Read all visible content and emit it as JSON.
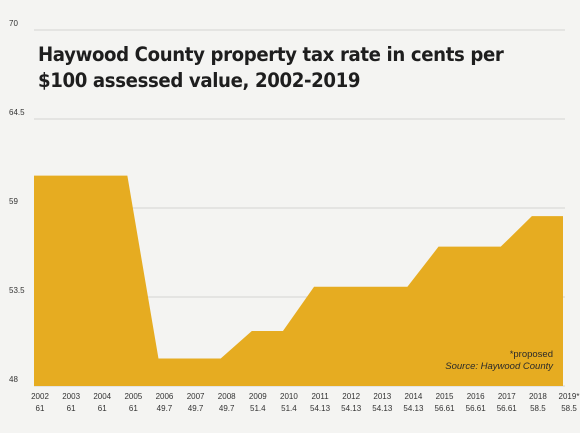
{
  "chart_data": {
    "type": "area",
    "title": "Haywood County property tax rate in cents per $100 assessed value, 2002-2019",
    "xlabel": "",
    "ylabel": "",
    "ylim": [
      48,
      70
    ],
    "yticks": [
      48,
      53.5,
      59,
      64.5,
      70
    ],
    "ytick_labels": [
      "48",
      "53.5",
      "59",
      "64.5",
      "70"
    ],
    "categories": [
      "2002",
      "2003",
      "2004",
      "2005",
      "2006",
      "2007",
      "2008",
      "2009",
      "2010",
      "2011",
      "2012",
      "2013",
      "2014",
      "2015",
      "2016",
      "2017",
      "2018",
      "2019*"
    ],
    "value_labels": [
      "61",
      "61",
      "61",
      "61",
      "49.7",
      "49.7",
      "49.7",
      "51.4",
      "51.4",
      "54.13",
      "54.13",
      "54.13",
      "54.13",
      "56.61",
      "56.61",
      "56.61",
      "58.5",
      "58.5"
    ],
    "values": [
      61,
      61,
      61,
      61,
      49.7,
      49.7,
      49.7,
      51.4,
      51.4,
      54.13,
      54.13,
      54.13,
      54.13,
      56.61,
      56.61,
      56.61,
      58.5,
      58.5
    ],
    "grid": true,
    "colors": {
      "fill": "#e6ac21",
      "grid": "#d3d3d3",
      "text": "#333333"
    }
  },
  "notes": {
    "proposed": "*proposed",
    "source": "Source: Haywood County"
  }
}
